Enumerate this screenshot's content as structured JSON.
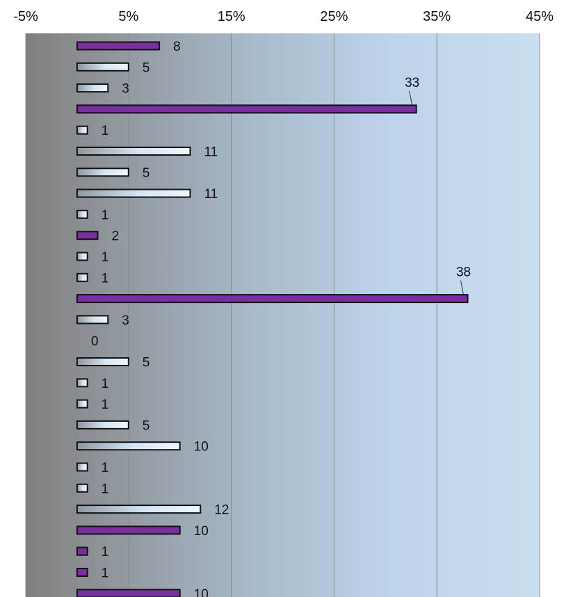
{
  "chart_data": {
    "type": "bar",
    "orientation": "horizontal",
    "xlim": [
      -5,
      45
    ],
    "x_ticks": [
      -5,
      5,
      15,
      25,
      35,
      45
    ],
    "x_tick_labels": [
      "-5%",
      "5%",
      "15%",
      "25%",
      "35%",
      "45%"
    ],
    "grid": true,
    "values": [
      8,
      5,
      3,
      33,
      1,
      11,
      5,
      11,
      1,
      2,
      1,
      1,
      38,
      3,
      0,
      5,
      1,
      1,
      5,
      10,
      1,
      1,
      12,
      10,
      1,
      1,
      10
    ],
    "highlighted": [
      true,
      false,
      false,
      true,
      false,
      false,
      false,
      false,
      false,
      true,
      false,
      false,
      true,
      false,
      false,
      false,
      false,
      false,
      false,
      false,
      false,
      false,
      false,
      true,
      true,
      true,
      true
    ],
    "colors": {
      "highlight_bar": "#7a2f9e",
      "normal_bar_light": "#e3f1ff",
      "normal_bar_dark": "#9aa4ad",
      "bar_outline": "#111111",
      "plot_left": "#808080",
      "plot_right": "#c8dcf0",
      "gridline": "#8c8c8c"
    }
  }
}
